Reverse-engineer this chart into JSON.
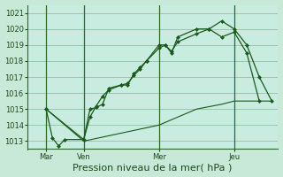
{
  "xlabel": "Pression niveau de la mer( hPa )",
  "bg_color": "#c8e8d8",
  "plot_bg_color": "#c8ece0",
  "grid_color": "#c0a8a8",
  "line_color": "#1a5a1a",
  "ylim": [
    1012.5,
    1021.5
  ],
  "yticks": [
    1013,
    1014,
    1015,
    1016,
    1017,
    1018,
    1019,
    1020,
    1021
  ],
  "xlim": [
    -4,
    76
  ],
  "day_labels": [
    "Mar",
    "Ven",
    "Mer",
    "Jeu"
  ],
  "day_positions": [
    2,
    14,
    38,
    62
  ],
  "vline_positions": [
    2,
    14,
    38,
    62
  ],
  "line1_x": [
    2,
    4,
    6,
    8,
    14,
    16,
    18,
    20,
    22,
    26,
    28,
    30,
    32,
    34,
    38,
    40,
    42,
    44,
    50,
    54,
    58,
    62,
    66,
    70,
    74
  ],
  "line1_y": [
    1015.0,
    1013.2,
    1012.7,
    1013.1,
    1013.1,
    1015.0,
    1015.1,
    1015.3,
    1016.3,
    1016.5,
    1016.6,
    1017.1,
    1017.5,
    1018.0,
    1019.0,
    1019.0,
    1018.5,
    1019.5,
    1020.0,
    1020.0,
    1020.5,
    1020.0,
    1019.0,
    1017.0,
    1015.5
  ],
  "line2_x": [
    2,
    14,
    16,
    18,
    20,
    22,
    26,
    28,
    30,
    32,
    34,
    38,
    40,
    42,
    44,
    50,
    54,
    58,
    62,
    66,
    70
  ],
  "line2_y": [
    1015.0,
    1013.1,
    1014.5,
    1015.2,
    1015.8,
    1016.2,
    1016.5,
    1016.5,
    1017.2,
    1017.6,
    1018.0,
    1018.8,
    1019.0,
    1018.6,
    1019.2,
    1019.7,
    1020.0,
    1019.5,
    1019.8,
    1018.5,
    1015.5
  ],
  "line3_x": [
    2,
    14,
    38,
    50,
    58,
    62,
    70,
    74
  ],
  "line3_y": [
    1015.0,
    1013.0,
    1014.0,
    1015.0,
    1015.3,
    1015.5,
    1015.5,
    1015.5
  ],
  "marker_size": 2.5,
  "tick_fontsize": 6,
  "xlabel_fontsize": 8
}
